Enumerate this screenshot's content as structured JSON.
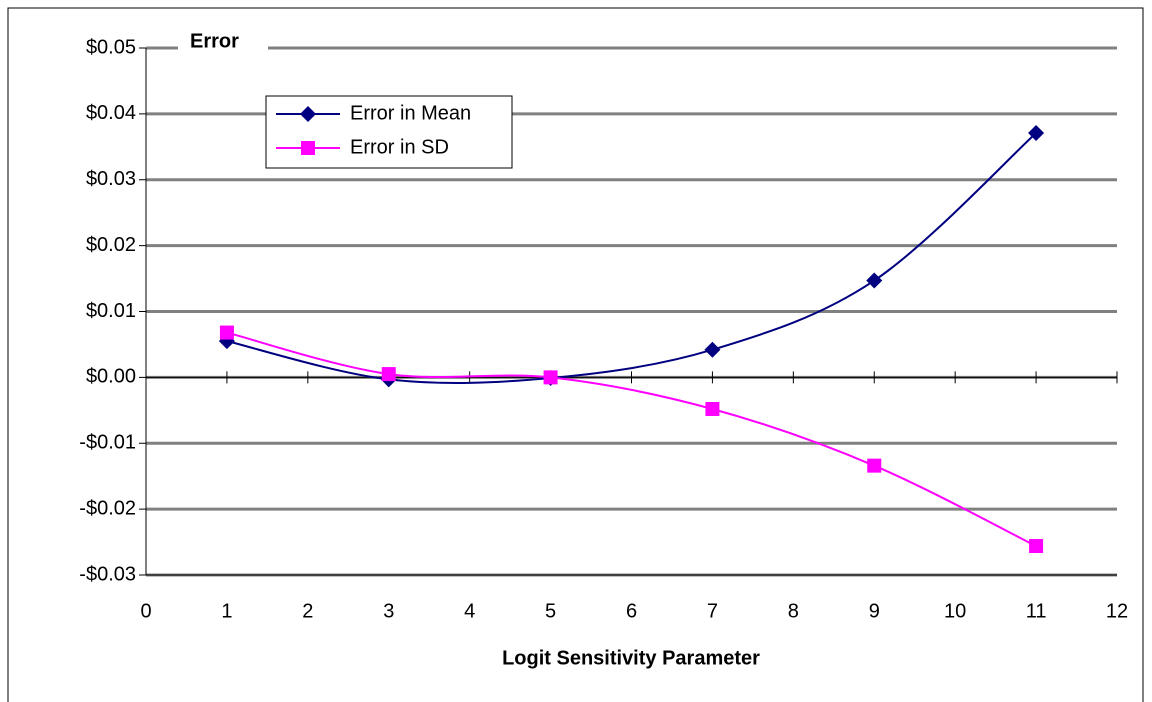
{
  "chart_data": {
    "type": "line",
    "title": "Error",
    "x_label": "Logit Sensitivity Parameter",
    "x": [
      1,
      3,
      5,
      7,
      9,
      11
    ],
    "series": [
      {
        "name": "Error in Mean",
        "color": "#000080",
        "marker": "diamond",
        "values": [
          0.0055,
          -0.0003,
          -0.0001,
          0.0042,
          0.0147,
          0.0371
        ]
      },
      {
        "name": "Error in SD",
        "color": "#ff00ff",
        "marker": "square",
        "values": [
          0.0068,
          0.0005,
          0.0,
          -0.0048,
          -0.0134,
          -0.0256
        ]
      }
    ],
    "xlim": [
      0,
      12
    ],
    "xticks": [
      0,
      1,
      2,
      3,
      4,
      5,
      6,
      7,
      8,
      9,
      10,
      11,
      12
    ],
    "ylim": [
      -0.03,
      0.05
    ],
    "yticks": [
      {
        "value": -0.03,
        "label": "-$0.03"
      },
      {
        "value": -0.02,
        "label": "-$0.02"
      },
      {
        "value": -0.01,
        "label": "-$0.01"
      },
      {
        "value": 0,
        "label": "$0.00"
      },
      {
        "value": 0.01,
        "label": "$0.01"
      },
      {
        "value": 0.02,
        "label": "$0.02"
      },
      {
        "value": 0.03,
        "label": "$0.03"
      },
      {
        "value": 0.04,
        "label": "$0.04"
      },
      {
        "value": 0.05,
        "label": "$0.05"
      }
    ],
    "grid": true,
    "smooth": true
  }
}
